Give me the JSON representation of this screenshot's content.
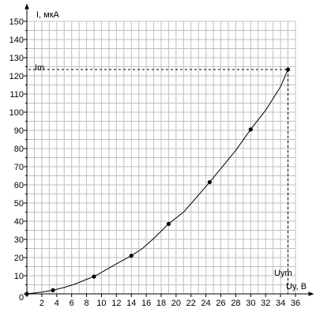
{
  "chart_data": {
    "type": "line",
    "title": "",
    "xlabel": "Uy, В",
    "ylabel": "I, мкА",
    "origin_label": "0",
    "xlim": [
      0,
      36
    ],
    "ylim": [
      0,
      150
    ],
    "x_ticks": [
      2,
      4,
      6,
      8,
      10,
      12,
      14,
      16,
      18,
      20,
      22,
      24,
      26,
      28,
      30,
      32,
      34,
      36
    ],
    "y_ticks": [
      10,
      20,
      30,
      40,
      50,
      60,
      70,
      80,
      90,
      100,
      110,
      120,
      130,
      140,
      150
    ],
    "grid": true,
    "curve": {
      "x": [
        0,
        1,
        2,
        3.5,
        5,
        6.5,
        8,
        9,
        10.5,
        12,
        14,
        15.5,
        17,
        19,
        21,
        22.5,
        24.5,
        26,
        28,
        30,
        32,
        34,
        35
      ],
      "y": [
        0,
        0.5,
        1,
        2,
        3.5,
        5.5,
        8,
        9.5,
        13,
        16.5,
        21,
        25,
        30.5,
        38.5,
        45,
        52,
        61.5,
        69,
        79,
        90.5,
        101,
        114,
        123.5
      ]
    },
    "points": {
      "x": [
        0,
        3.5,
        9,
        14,
        19,
        24.5,
        30,
        35
      ],
      "y": [
        0,
        2,
        9.5,
        21,
        38.5,
        61.5,
        90.5,
        123.5
      ]
    },
    "annotations": {
      "im_label": "Im",
      "uym_label": "Uym",
      "peak": {
        "x": 35,
        "y": 123.5
      }
    }
  }
}
